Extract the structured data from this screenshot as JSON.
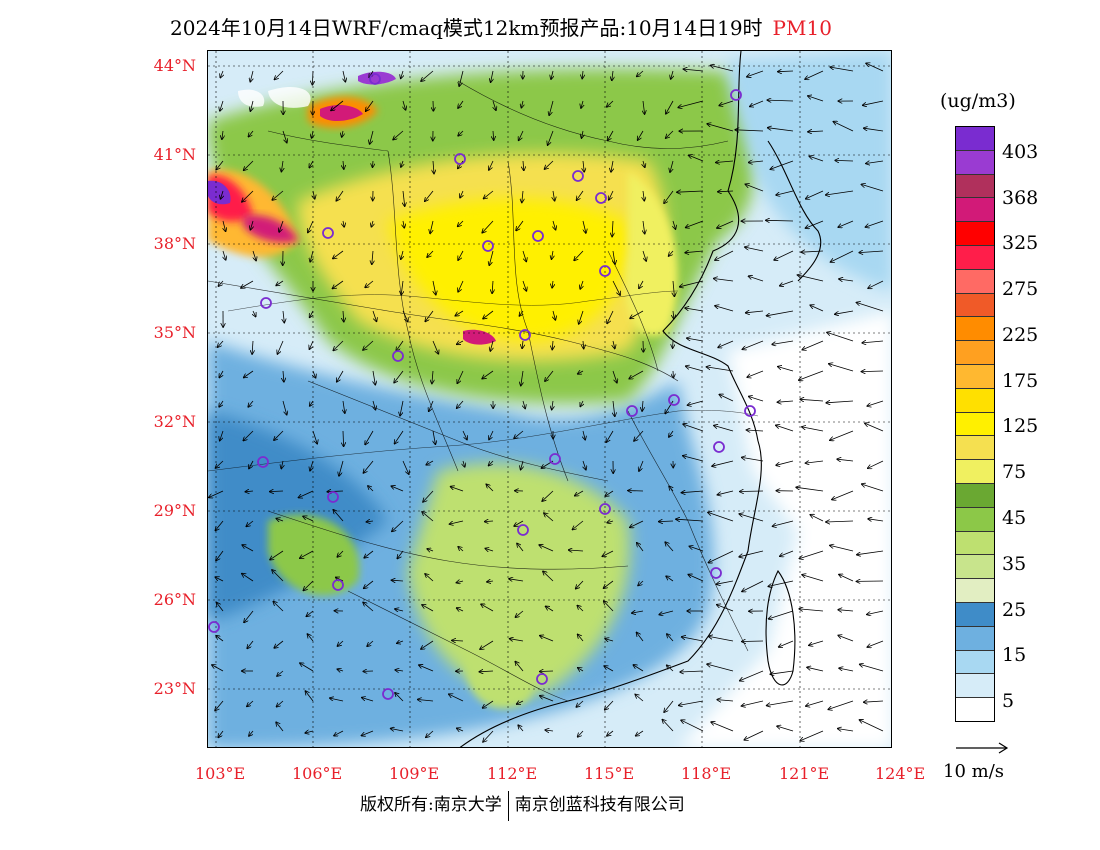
{
  "title": {
    "main": "2024年10月14日WRF/cmaq模式12km预报产品:10月14日19时",
    "pollutant": "PM10"
  },
  "axes": {
    "lat_labels": [
      "44°N",
      "41°N",
      "38°N",
      "35°N",
      "32°N",
      "29°N",
      "26°N",
      "23°N"
    ],
    "lon_labels": [
      "103°E",
      "106°E",
      "109°E",
      "112°E",
      "115°E",
      "118°E",
      "121°E",
      "124°E"
    ]
  },
  "legend": {
    "unit": "(ug/m3)",
    "ticks": [
      "403",
      "368",
      "325",
      "275",
      "225",
      "175",
      "125",
      "75",
      "45",
      "35",
      "25",
      "15",
      "5"
    ],
    "colors": [
      "#7a2cd0",
      "#9a3bd2",
      "#b0305c",
      "#d21a78",
      "#ff0000",
      "#ff1e4a",
      "#ff6a64",
      "#f05a28",
      "#ff8c00",
      "#ffa020",
      "#ffb830",
      "#ffe000",
      "#fff000",
      "#f5e050",
      "#f0f060",
      "#6aa832",
      "#8cc848",
      "#bee070",
      "#c8e48c",
      "#e2eec2",
      "#3f8cc8",
      "#6eb0e0",
      "#a8d8f2",
      "#d6ecf8",
      "#ffffff"
    ]
  },
  "wind_reference": "10 m/s",
  "footer": {
    "left": "版权所有:南京大学",
    "right": "南京创蓝科技有限公司"
  },
  "station_count": 26
}
